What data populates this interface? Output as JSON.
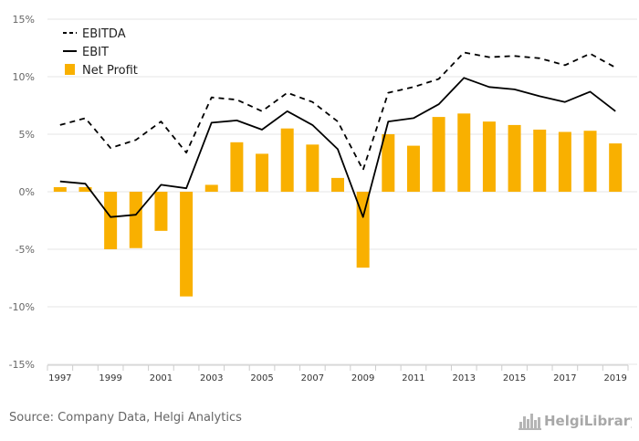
{
  "chart_data": {
    "type": "bar+line",
    "categories": [
      "1997",
      "1998",
      "1999",
      "2000",
      "2001",
      "2002",
      "2003",
      "2004",
      "2005",
      "2006",
      "2007",
      "2008",
      "2009",
      "2010",
      "2011",
      "2012",
      "2013",
      "2014",
      "2015",
      "2016",
      "2017",
      "2018",
      "2019"
    ],
    "x_tick_labels": [
      "1997",
      "1999",
      "2001",
      "2003",
      "2005",
      "2007",
      "2009",
      "2011",
      "2013",
      "2015",
      "2017",
      "2019"
    ],
    "y_tick_labels": [
      "15%",
      "10%",
      "5%",
      "0%",
      "-5%",
      "-10%",
      "-15%"
    ],
    "ylim": [
      -15,
      15
    ],
    "y_unit": "%",
    "grid": "horizontal",
    "legend_position": "top-left",
    "series": [
      {
        "name": "EBITDA",
        "type": "line",
        "style": "dashed",
        "color": "#000000",
        "values": [
          5.8,
          6.4,
          3.8,
          4.5,
          6.1,
          3.4,
          8.2,
          8.0,
          7.0,
          8.6,
          7.8,
          6.1,
          1.9,
          8.6,
          9.1,
          9.8,
          12.1,
          11.7,
          11.8,
          11.6,
          11.0,
          12.0,
          10.8
        ]
      },
      {
        "name": "EBIT",
        "type": "line",
        "style": "solid",
        "color": "#000000",
        "values": [
          0.9,
          0.7,
          -2.2,
          -2.0,
          0.6,
          0.3,
          6.0,
          6.2,
          5.4,
          7.0,
          5.8,
          3.7,
          -2.2,
          6.1,
          6.4,
          7.6,
          9.9,
          9.1,
          8.9,
          8.3,
          7.8,
          8.7,
          7.0
        ]
      },
      {
        "name": "Net Profit",
        "type": "bar",
        "color": "#f9b000",
        "values": [
          0.4,
          0.4,
          -5.0,
          -4.9,
          -3.4,
          -9.1,
          0.6,
          4.3,
          3.3,
          5.5,
          4.1,
          1.2,
          -6.6,
          5.0,
          4.0,
          6.5,
          6.8,
          6.1,
          5.8,
          5.4,
          5.2,
          5.3,
          4.2
        ]
      }
    ]
  },
  "footer": {
    "source": "Source: Company Data, Helgi Analytics",
    "brand": "HelgiLibrary"
  }
}
